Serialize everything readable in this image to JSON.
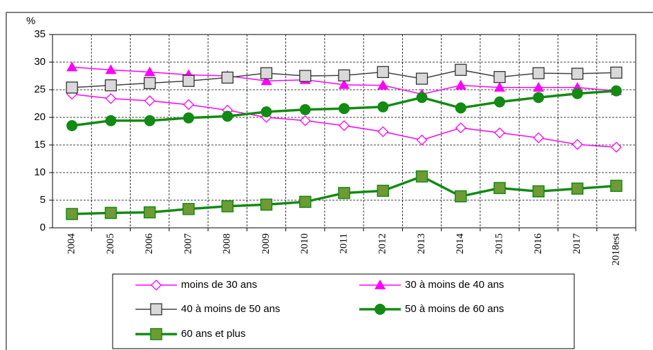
{
  "chart_data": {
    "type": "line",
    "y_label": "%",
    "categories": [
      "2004",
      "2005",
      "2006",
      "2007",
      "2008",
      "2009",
      "2010",
      "2011",
      "2012",
      "2013",
      "2014",
      "2015",
      "2016",
      "2017",
      "2018est"
    ],
    "ylim": [
      0,
      35
    ],
    "yticks": [
      0,
      5,
      10,
      15,
      20,
      25,
      30,
      35
    ],
    "grid": true,
    "series": [
      {
        "name": "moins de 30 ans",
        "color": "#ff00ff",
        "marker": "diamond",
        "values": [
          24.2,
          23.4,
          23.0,
          22.3,
          21.3,
          20.0,
          19.4,
          18.5,
          17.4,
          15.9,
          18.1,
          17.2,
          16.3,
          15.1,
          14.6
        ]
      },
      {
        "name": "30 à moins de 40 ans",
        "color": "#ff00ff",
        "marker": "triangle",
        "values": [
          29.1,
          28.6,
          28.2,
          27.7,
          27.5,
          26.6,
          26.8,
          25.9,
          25.8,
          24.2,
          25.8,
          25.4,
          25.4,
          25.4,
          24.8
        ]
      },
      {
        "name": "40 à moins de 50 ans",
        "color": "#404040",
        "marker": "square",
        "values": [
          25.4,
          25.8,
          26.2,
          26.6,
          27.2,
          28.0,
          27.5,
          27.6,
          28.2,
          27.0,
          28.6,
          27.3,
          28.0,
          27.9,
          28.1
        ]
      },
      {
        "name": "50 à moins de 60 ans",
        "color": "#138a13",
        "marker": "circle",
        "values": [
          18.5,
          19.4,
          19.4,
          19.9,
          20.2,
          21.0,
          21.4,
          21.6,
          21.9,
          23.6,
          21.7,
          22.8,
          23.6,
          24.3,
          24.8
        ]
      },
      {
        "name": "60 ans et plus",
        "color": "#138a13",
        "marker": "square-green",
        "values": [
          2.5,
          2.7,
          2.8,
          3.4,
          3.9,
          4.2,
          4.7,
          6.3,
          6.7,
          9.3,
          5.7,
          7.2,
          6.6,
          7.1,
          7.6
        ]
      }
    ]
  }
}
